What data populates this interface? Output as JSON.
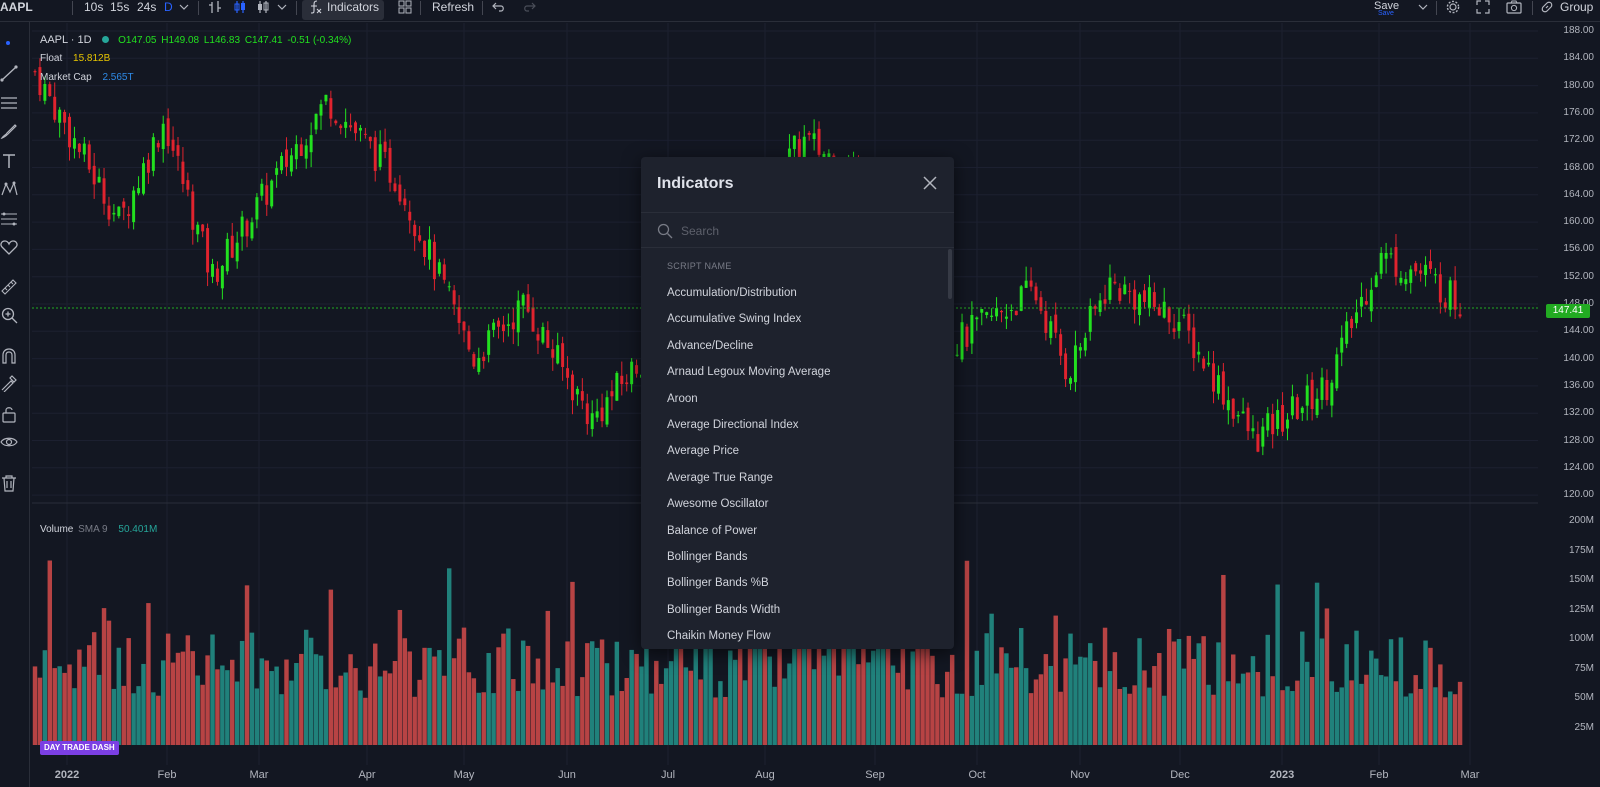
{
  "toolbar": {
    "symbol": "AAPL",
    "intervals": [
      "10s",
      "15s",
      "24s",
      "D"
    ],
    "indicators_label": "Indicators",
    "refresh_label": "Refresh",
    "save_label": "Save",
    "save_sub": "Save",
    "group_label": "Group"
  },
  "legend": {
    "title": "AAPL · 1D",
    "ohlc": {
      "o": "O147.05",
      "h": "H149.08",
      "l": "L146.83",
      "c": "C147.41",
      "chg": "-0.51 (-0.34%)"
    },
    "float_label": "Float",
    "float_value": "15.812B",
    "mcap_label": "Market Cap",
    "mcap_value": "2.565T",
    "volume_label": "Volume",
    "volume_sma": "SMA 9",
    "volume_value": "50.401M"
  },
  "last_price": "147.41",
  "price_axis": [
    "188.00",
    "184.00",
    "180.00",
    "176.00",
    "172.00",
    "168.00",
    "164.00",
    "160.00",
    "156.00",
    "152.00",
    "148.00",
    "144.00",
    "140.00",
    "136.00",
    "132.00",
    "128.00",
    "124.00",
    "120.00"
  ],
  "volume_axis": [
    "200M",
    "175M",
    "150M",
    "125M",
    "100M",
    "75M",
    "50M",
    "25M"
  ],
  "time_axis": [
    "2022",
    "Feb",
    "Mar",
    "Apr",
    "May",
    "Jun",
    "Jul",
    "Aug",
    "Sep",
    "Oct",
    "Nov",
    "Dec",
    "2023",
    "Feb",
    "Mar"
  ],
  "modal": {
    "title": "Indicators",
    "search_placeholder": "Search",
    "column_header": "SCRIPT NAME",
    "items": [
      "Accumulation/Distribution",
      "Accumulative Swing Index",
      "Advance/Decline",
      "Arnaud Legoux Moving Average",
      "Aroon",
      "Average Directional Index",
      "Average Price",
      "Average True Range",
      "Awesome Oscillator",
      "Balance of Power",
      "Bollinger Bands",
      "Bollinger Bands %B",
      "Bollinger Bands Width",
      "Chaikin Money Flow"
    ]
  },
  "brand": "DAY TRADE DASH",
  "colors": {
    "up": "#22e01f",
    "down": "#e0232e",
    "vol_up": "#26a69a",
    "vol_down": "#ef5350",
    "accent": "#2962ff"
  },
  "left_tools": [
    "dot-icon",
    "trendline-icon",
    "horizontal-lines-icon",
    "brush-icon",
    "text-icon",
    "pattern-icon",
    "fib-icon",
    "heart-icon",
    "ruler-icon",
    "zoom-icon",
    "magnet-icon",
    "lock-draw-icon",
    "lock-icon",
    "eye-icon",
    "trash-icon"
  ],
  "chart_data": {
    "type": "candlestick",
    "symbol": "AAPL",
    "interval": "1D",
    "last": {
      "open": 147.05,
      "high": 149.08,
      "low": 146.83,
      "close": 147.41
    },
    "price_range": [
      120,
      188
    ],
    "volume_range": [
      0,
      200000000
    ],
    "x_range": [
      "2022-01",
      "2023-03"
    ],
    "price_path": [
      [
        "2022-01-03",
        182
      ],
      [
        "2022-01-28",
        160
      ],
      [
        "2022-02-10",
        175
      ],
      [
        "2022-02-24",
        152
      ],
      [
        "2022-03-30",
        178
      ],
      [
        "2022-04-20",
        166
      ],
      [
        "2022-05-12",
        140
      ],
      [
        "2022-05-27",
        148
      ],
      [
        "2022-06-16",
        131
      ],
      [
        "2022-07-20",
        152
      ],
      [
        "2022-08-17",
        172
      ],
      [
        "2022-09-12",
        164
      ],
      [
        "2022-09-30",
        142
      ],
      [
        "2022-10-24",
        150
      ],
      [
        "2022-11-03",
        138
      ],
      [
        "2022-11-15",
        151
      ],
      [
        "2022-12-05",
        146
      ],
      [
        "2022-12-28",
        128
      ],
      [
        "2023-01-18",
        136
      ],
      [
        "2023-02-03",
        155
      ],
      [
        "2023-02-17",
        152
      ],
      [
        "2023-02-28",
        147.41
      ]
    ],
    "volume_avg": 50401000
  }
}
